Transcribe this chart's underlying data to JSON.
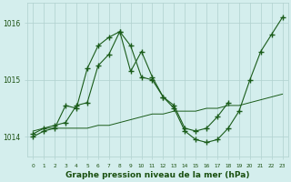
{
  "title": "Graphe pression niveau de la mer (hPa)",
  "x_hours": [
    0,
    1,
    2,
    3,
    4,
    5,
    6,
    7,
    8,
    9,
    10,
    11,
    12,
    13,
    14,
    15,
    16,
    17,
    18,
    19,
    20,
    21,
    22,
    23
  ],
  "line1_x": [
    0,
    1,
    2,
    3,
    4,
    5,
    6,
    7,
    8,
    9,
    10,
    11,
    12,
    13,
    14,
    15,
    16,
    17,
    18,
    19,
    20,
    21,
    22,
    23
  ],
  "line1_y": [
    1014.0,
    1014.1,
    1014.15,
    1014.55,
    1014.5,
    1015.2,
    1015.6,
    1015.75,
    1015.85,
    1015.6,
    1015.05,
    1015.0,
    1014.7,
    1014.5,
    1014.1,
    1013.95,
    1013.9,
    1013.95,
    1014.15,
    1014.45,
    1015.0,
    1015.5,
    1015.8,
    1016.1
  ],
  "line2_x": [
    0,
    1,
    2,
    3,
    4,
    5,
    6,
    7,
    8,
    9,
    10,
    11,
    12,
    13,
    14,
    15,
    16,
    17,
    18
  ],
  "line2_y": [
    1014.05,
    1014.15,
    1014.2,
    1014.25,
    1014.55,
    1014.6,
    1015.25,
    1015.45,
    1015.85,
    1015.15,
    1015.5,
    1015.05,
    1014.7,
    1014.55,
    1014.15,
    1014.1,
    1014.15,
    1014.35,
    1014.6
  ],
  "line3_x": [
    0,
    1,
    2,
    3,
    4,
    5,
    6,
    7,
    8,
    9,
    10,
    11,
    12,
    13,
    14,
    15,
    16,
    17,
    18,
    19,
    20,
    21,
    22,
    23
  ],
  "line3_y": [
    1014.1,
    1014.15,
    1014.15,
    1014.15,
    1014.15,
    1014.15,
    1014.2,
    1014.2,
    1014.25,
    1014.3,
    1014.35,
    1014.4,
    1014.4,
    1014.45,
    1014.45,
    1014.45,
    1014.5,
    1014.5,
    1014.55,
    1014.55,
    1014.6,
    1014.65,
    1014.7,
    1014.75
  ],
  "bg_color": "#d4eeed",
  "grid_color": "#b0d0ce",
  "line_color": "#1a5c1a",
  "ylim": [
    1013.65,
    1016.35
  ],
  "yticks": [
    1014,
    1015,
    1016
  ],
  "title_color": "#1a5010",
  "title_fontsize": 6.5
}
